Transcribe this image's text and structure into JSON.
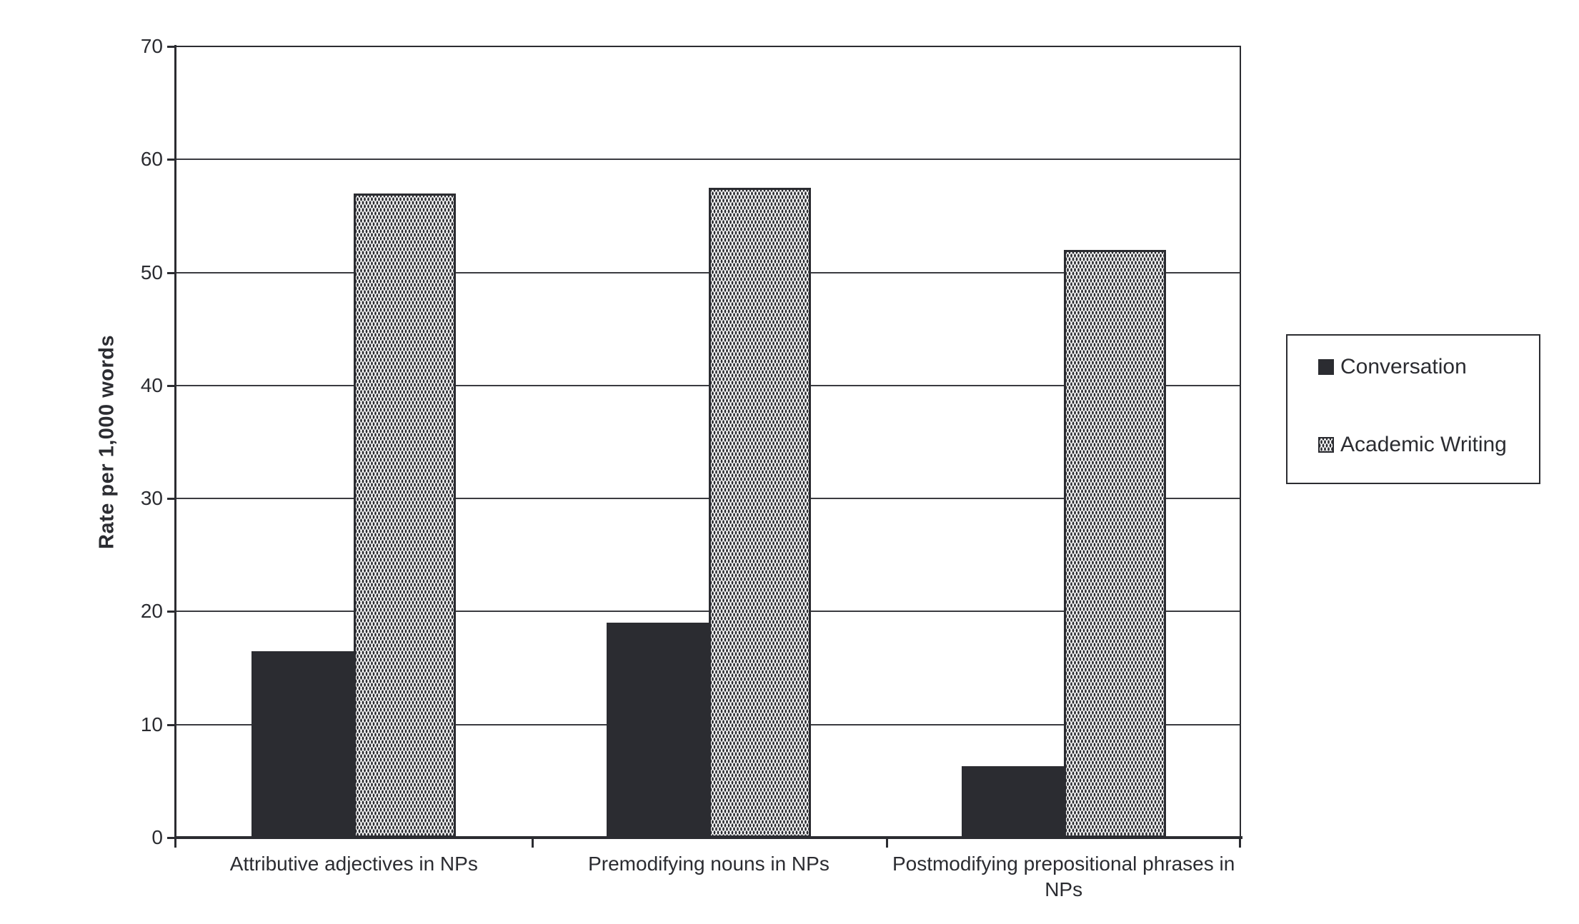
{
  "chart_data": {
    "type": "bar",
    "categories": [
      "Attributive adjectives in NPs",
      "Premodifying nouns in NPs",
      "Postmodifying prepositional phrases in NPs"
    ],
    "series": [
      {
        "name": "Conversation",
        "values": [
          16.5,
          19,
          6.3
        ],
        "fill": "solid",
        "color": "#2b2c31"
      },
      {
        "name": "Academic Writing",
        "values": [
          57,
          57.5,
          52
        ],
        "fill": "dotted",
        "color": "#2b2c31"
      }
    ],
    "title": "",
    "xlabel": "",
    "ylabel": "Rate per 1,000 words",
    "ylim": [
      0,
      70
    ],
    "yticks": [
      0,
      10,
      20,
      30,
      40,
      50,
      60,
      70
    ],
    "grid": true,
    "legend_position": "right",
    "background_color": "#ffffff",
    "gridline_color": "#3a3b40",
    "axis_color": "#2b2c31"
  }
}
